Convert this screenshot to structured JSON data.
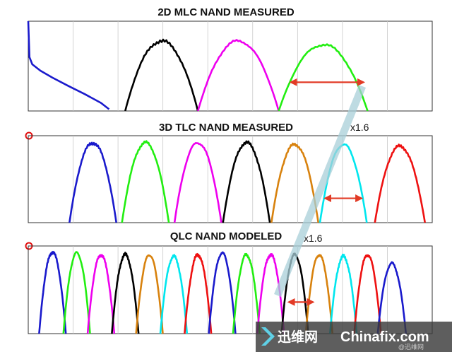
{
  "chart_data": [
    {
      "type": "line",
      "title": "2D MLC NAND MEASURED",
      "state_count": 4,
      "series": [
        {
          "color": "#1a1acc",
          "kind": "erase",
          "x": [
            0,
            0.3,
            1,
            3,
            6,
            10,
            14,
            18,
            20
          ],
          "y": [
            1.0,
            0.6,
            0.52,
            0.44,
            0.36,
            0.27,
            0.18,
            0.09,
            0.02
          ]
        },
        {
          "color": "#000000",
          "center": 33,
          "half_width": 9,
          "peak": 0.78
        },
        {
          "color": "#ee00ee",
          "center": 52,
          "half_width": 10,
          "peak": 0.78
        },
        {
          "color": "#22ee11",
          "center": 73,
          "half_width": 11,
          "peak": 0.74
        }
      ],
      "annotation": {
        "type": "double-arrow",
        "color": "#e23a25",
        "x_from": 65,
        "x_to": 83,
        "y": 0.32
      }
    },
    {
      "type": "line",
      "title": "3D TLC NAND MEASURED",
      "state_count": 7,
      "series": [
        {
          "color": "#1a1acc",
          "center": 16,
          "half_width": 5.8,
          "peak": 0.92
        },
        {
          "color": "#22ee11",
          "center": 29,
          "half_width": 5.8,
          "peak": 0.92
        },
        {
          "color": "#ee00ee",
          "center": 42,
          "half_width": 5.8,
          "peak": 0.92
        },
        {
          "color": "#000000",
          "center": 54,
          "half_width": 5.8,
          "peak": 0.92
        },
        {
          "color": "#d8820e",
          "center": 66,
          "half_width": 5.8,
          "peak": 0.9
        },
        {
          "color": "#00e6ee",
          "center": 78,
          "half_width": 5.8,
          "peak": 0.9
        },
        {
          "color": "#ee1111",
          "center": 92,
          "half_width": 6.2,
          "peak": 0.88
        }
      ],
      "annotation": {
        "type": "double-arrow",
        "color": "#e23a25",
        "x_from": 73.5,
        "x_to": 82.5,
        "y": 0.28,
        "label": "x1.6"
      }
    },
    {
      "type": "line",
      "title": "QLC NAND MODELED",
      "state_count": 15,
      "series": [
        {
          "color": "#1a1acc",
          "center": 6,
          "half_width": 3.3,
          "peak": 0.93
        },
        {
          "color": "#22ee11",
          "center": 12,
          "half_width": 3.3,
          "peak": 0.92
        },
        {
          "color": "#ee00ee",
          "center": 18,
          "half_width": 3.3,
          "peak": 0.9
        },
        {
          "color": "#000000",
          "center": 24,
          "half_width": 3.3,
          "peak": 0.9
        },
        {
          "color": "#d8820e",
          "center": 30,
          "half_width": 3.3,
          "peak": 0.9
        },
        {
          "color": "#00e6ee",
          "center": 36,
          "half_width": 3.3,
          "peak": 0.88
        },
        {
          "color": "#ee1111",
          "center": 42,
          "half_width": 3.3,
          "peak": 0.9
        },
        {
          "color": "#1a1acc",
          "center": 48,
          "half_width": 3.3,
          "peak": 0.92
        },
        {
          "color": "#22ee11",
          "center": 54,
          "half_width": 3.3,
          "peak": 0.9
        },
        {
          "color": "#ee00ee",
          "center": 60,
          "half_width": 3.3,
          "peak": 0.9
        },
        {
          "color": "#000000",
          "center": 66,
          "half_width": 3.3,
          "peak": 0.9
        },
        {
          "color": "#d8820e",
          "center": 72,
          "half_width": 3.3,
          "peak": 0.9
        },
        {
          "color": "#00e6ee",
          "center": 78,
          "half_width": 3.3,
          "peak": 0.88
        },
        {
          "color": "#ee1111",
          "center": 84,
          "half_width": 3.3,
          "peak": 0.9
        },
        {
          "color": "#1a1acc",
          "center": 90,
          "half_width": 3.5,
          "peak": 0.8
        }
      ],
      "annotation": {
        "type": "double-arrow",
        "color": "#e23a25",
        "x_from": 64.5,
        "x_to": 70.5,
        "y": 0.36,
        "label": "x1.6"
      }
    }
  ],
  "watermark": {
    "brand_cn": "迅维网",
    "brand_en": "Chinafix.com",
    "sub": "@迅维网"
  }
}
